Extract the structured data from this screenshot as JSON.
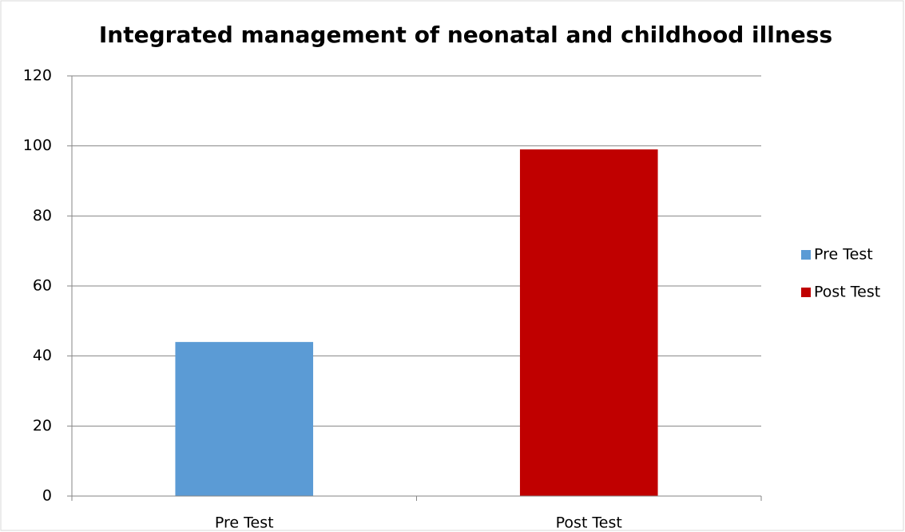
{
  "chart_data": {
    "type": "bar",
    "title": "Integrated management of neonatal and childhood illness",
    "categories": [
      "Pre Test",
      "Post Test"
    ],
    "values": [
      44,
      99
    ],
    "colors": [
      "#5b9bd5",
      "#c00000"
    ],
    "ylim": [
      0,
      120
    ],
    "yticks": [
      0,
      20,
      40,
      60,
      80,
      100,
      120
    ],
    "grid": true,
    "legend": "right"
  }
}
